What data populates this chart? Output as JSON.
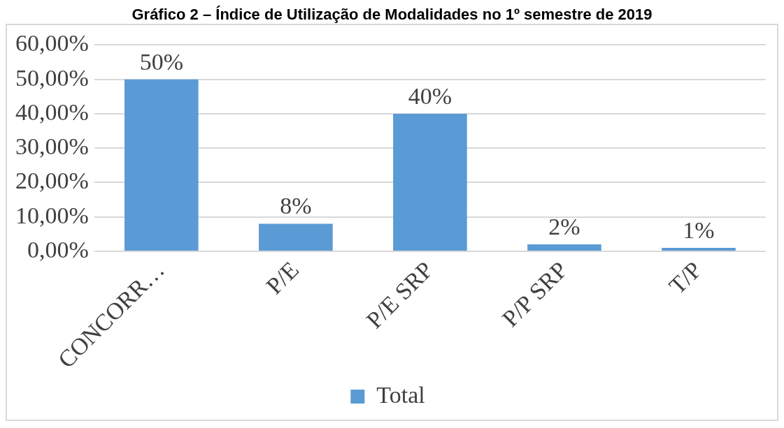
{
  "chart_data": {
    "type": "bar",
    "title": "Gráfico 2 – Índice de Utilização de Modalidades no 1º semestre de 2019",
    "categories": [
      "CONCORR…",
      "P/E",
      "P/E SRP",
      "P/P SRP",
      "T/P"
    ],
    "series": [
      {
        "name": "Total",
        "color": "#5b9bd5",
        "values": [
          50,
          8,
          40,
          2,
          1
        ],
        "value_labels": [
          "50%",
          "8%",
          "40%",
          "2%",
          "1%"
        ]
      }
    ],
    "ylim": [
      0,
      60
    ],
    "yticks": [
      {
        "value": 0,
        "label": "0,00%"
      },
      {
        "value": 10,
        "label": "10,00%"
      },
      {
        "value": 20,
        "label": "20,00%"
      },
      {
        "value": 30,
        "label": "30,00%"
      },
      {
        "value": 40,
        "label": "40,00%"
      },
      {
        "value": 50,
        "label": "50,00%"
      },
      {
        "value": 60,
        "label": "60,00%"
      }
    ],
    "grid": "y",
    "legend": "bottom"
  }
}
